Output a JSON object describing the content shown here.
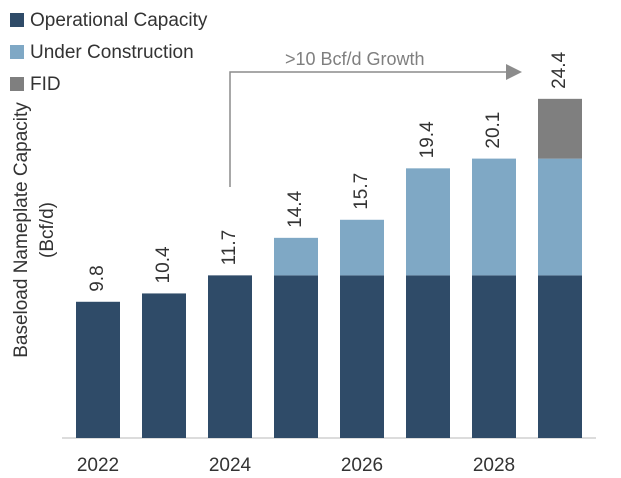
{
  "chart_data": {
    "type": "stacked-bar",
    "y_label": [
      "Baseload Nameplate Capacity",
      "(Bcf/d)"
    ],
    "annotation": ">10 Bcf/d Growth",
    "categories": [
      "2022",
      null,
      "2024",
      null,
      "2026",
      null,
      "2028",
      null
    ],
    "series": [
      {
        "name": "Operational Capacity",
        "color": "#2f4b68",
        "values": [
          9.8,
          10.4,
          11.7,
          11.7,
          11.7,
          11.7,
          11.7,
          11.7
        ]
      },
      {
        "name": "Under Construction",
        "color": "#7fa8c5",
        "values": [
          0,
          0,
          0,
          2.7,
          4.0,
          7.7,
          8.4,
          8.4
        ]
      },
      {
        "name": "FID",
        "color": "#7f7f7f",
        "values": [
          0,
          0,
          0,
          0,
          0,
          0,
          0,
          4.3
        ]
      }
    ],
    "totals": [
      9.8,
      10.4,
      11.7,
      14.4,
      15.7,
      19.4,
      20.1,
      24.4
    ],
    "ylim": [
      0,
      30
    ]
  }
}
